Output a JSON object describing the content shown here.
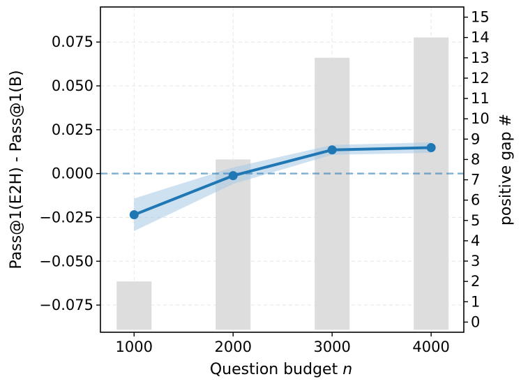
{
  "chart_data": {
    "type": "bar+line",
    "xlabel": "Question budget",
    "xlabel_var": "n",
    "ylabel_left": "Pass@1(E2H) - Pass@1(B)",
    "ylabel_right": "positive gap #",
    "x": [
      1000,
      2000,
      3000,
      4000
    ],
    "x_ticks": [
      "1000",
      "2000",
      "3000",
      "4000"
    ],
    "xlim": [
      660,
      4330
    ],
    "ylim_left": [
      -0.0905,
      0.095
    ],
    "yticks_left": [
      "0.075",
      "0.050",
      "0.025",
      "0.000",
      "−0.025",
      "−0.050",
      "−0.075"
    ],
    "yticks_left_values": [
      0.075,
      0.05,
      0.025,
      0.0,
      -0.025,
      -0.05,
      -0.075
    ],
    "ylim_right": [
      -0.5,
      15.5
    ],
    "yticks_right": [
      "0",
      "1",
      "2",
      "3",
      "4",
      "5",
      "6",
      "7",
      "8",
      "9",
      "10",
      "11",
      "12",
      "13",
      "14",
      "15"
    ],
    "bars": {
      "values": [
        2,
        8,
        13,
        14
      ],
      "color": "#dddddd"
    },
    "line": {
      "values": [
        -0.0235,
        -0.0012,
        0.0135,
        0.0148
      ],
      "band_upper": [
        -0.0142,
        0.0035,
        0.0163,
        0.0178
      ],
      "band_lower": [
        -0.0328,
        -0.0059,
        0.0107,
        0.0118
      ],
      "color": "#1f77b4",
      "band_color": "#a6c8e6"
    },
    "reference_line": {
      "y": 0.0,
      "color": "#1f77b4",
      "style": "dashed"
    },
    "grid": true
  }
}
